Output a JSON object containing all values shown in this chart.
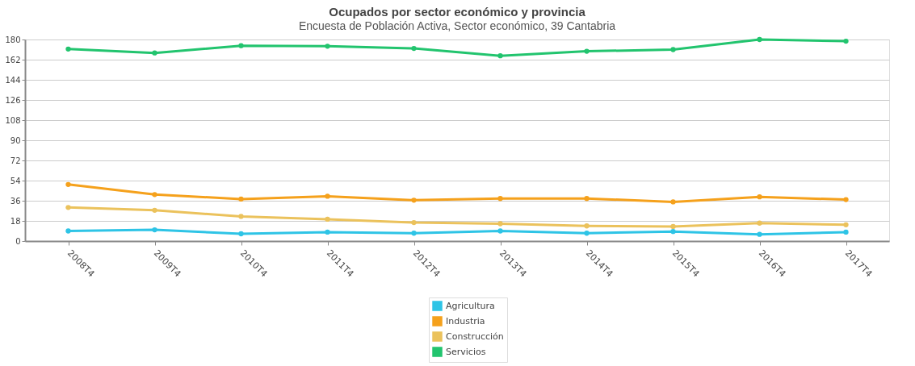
{
  "chart_data": {
    "type": "line",
    "title": "Ocupados por sector económico y provincia",
    "subtitle": "Encuesta de Población Activa, Sector económico, 39 Cantabria",
    "categories": [
      "2008T4",
      "2009T4",
      "2010T4",
      "2011T4",
      "2012T4",
      "2013T4",
      "2014T4",
      "2015T4",
      "2016T4",
      "2017T4"
    ],
    "series": [
      {
        "name": "Agricultura",
        "color": "#2ec4e6",
        "values": [
          9,
          10,
          6.5,
          8,
          7,
          9,
          7,
          8.5,
          6,
          8
        ]
      },
      {
        "name": "Industria",
        "color": "#f5a11c",
        "values": [
          50.5,
          41.5,
          37.5,
          40,
          36.5,
          38,
          38,
          35,
          39.5,
          37
        ]
      },
      {
        "name": "Construcción",
        "color": "#ebc25c",
        "values": [
          30,
          27.5,
          22,
          19.5,
          16.5,
          15.5,
          13.5,
          13,
          16,
          14.5
        ]
      },
      {
        "name": "Servicios",
        "color": "#22c46e",
        "values": [
          171.5,
          168,
          174.5,
          174,
          172,
          165.5,
          169.5,
          171,
          180,
          178.5
        ]
      }
    ],
    "ylim": [
      0,
      180
    ],
    "yticks": [
      0,
      18,
      36,
      54,
      72,
      90,
      108,
      126,
      144,
      162,
      180
    ],
    "grid": "y",
    "legend": "bottom",
    "marker": "circle",
    "line_style": "solid"
  }
}
